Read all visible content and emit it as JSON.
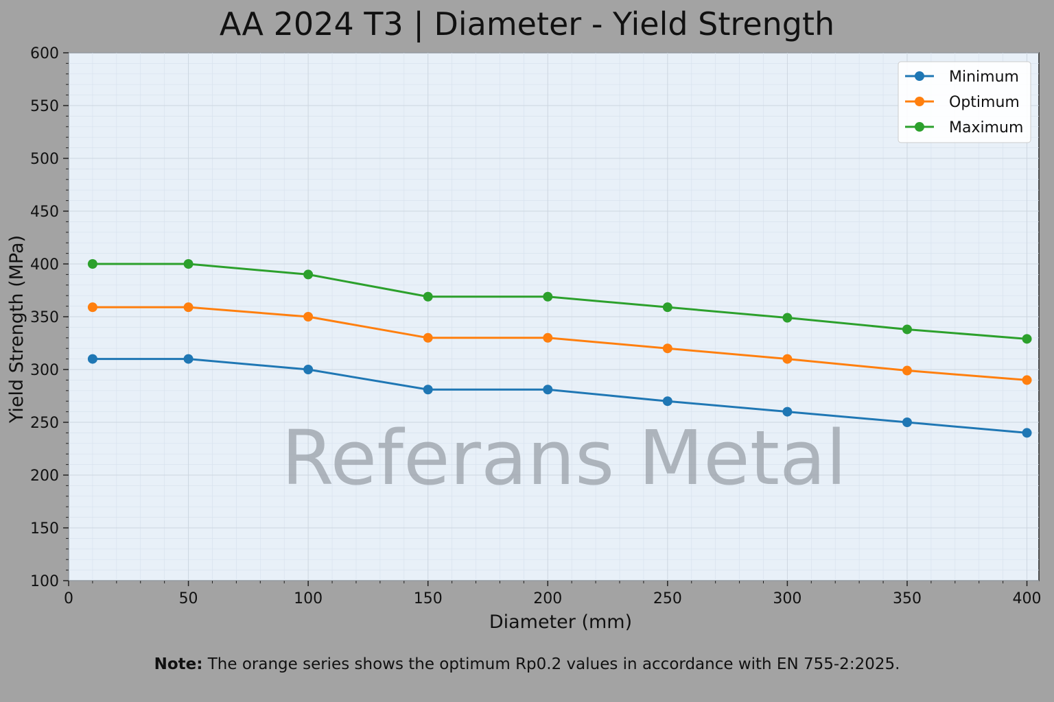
{
  "chart_data": {
    "type": "line",
    "title": "AA 2024 T3 | Diameter - Yield Strength",
    "xlabel": "Diameter (mm)",
    "ylabel": "Yield Strength (MPa)",
    "xlim": [
      0,
      405
    ],
    "ylim": [
      100,
      600
    ],
    "xticks": [
      0,
      50,
      100,
      150,
      200,
      250,
      300,
      350,
      400
    ],
    "yticks": [
      100,
      150,
      200,
      250,
      300,
      350,
      400,
      450,
      500,
      550,
      600
    ],
    "x": [
      10,
      50,
      100,
      150,
      200,
      250,
      300,
      350,
      400
    ],
    "series": [
      {
        "name": "Minimum",
        "color": "#1f77b4",
        "values": [
          310,
          310,
          300,
          281,
          281,
          270,
          260,
          250,
          240
        ]
      },
      {
        "name": "Optimum",
        "color": "#ff7f0e",
        "values": [
          359,
          359,
          350,
          330,
          330,
          320,
          310,
          299,
          290
        ]
      },
      {
        "name": "Maximum",
        "color": "#2ca02c",
        "values": [
          400,
          400,
          390,
          369,
          369,
          359,
          349,
          338,
          329
        ]
      }
    ],
    "grid": true,
    "legend_position": "top-right",
    "watermark": "Referans Metal",
    "plot_background": "#e8f0f8"
  },
  "note": {
    "label": "Note:",
    "text": "The orange series shows the optimum Rp0.2 values in accordance with EN 755-2:2025."
  }
}
